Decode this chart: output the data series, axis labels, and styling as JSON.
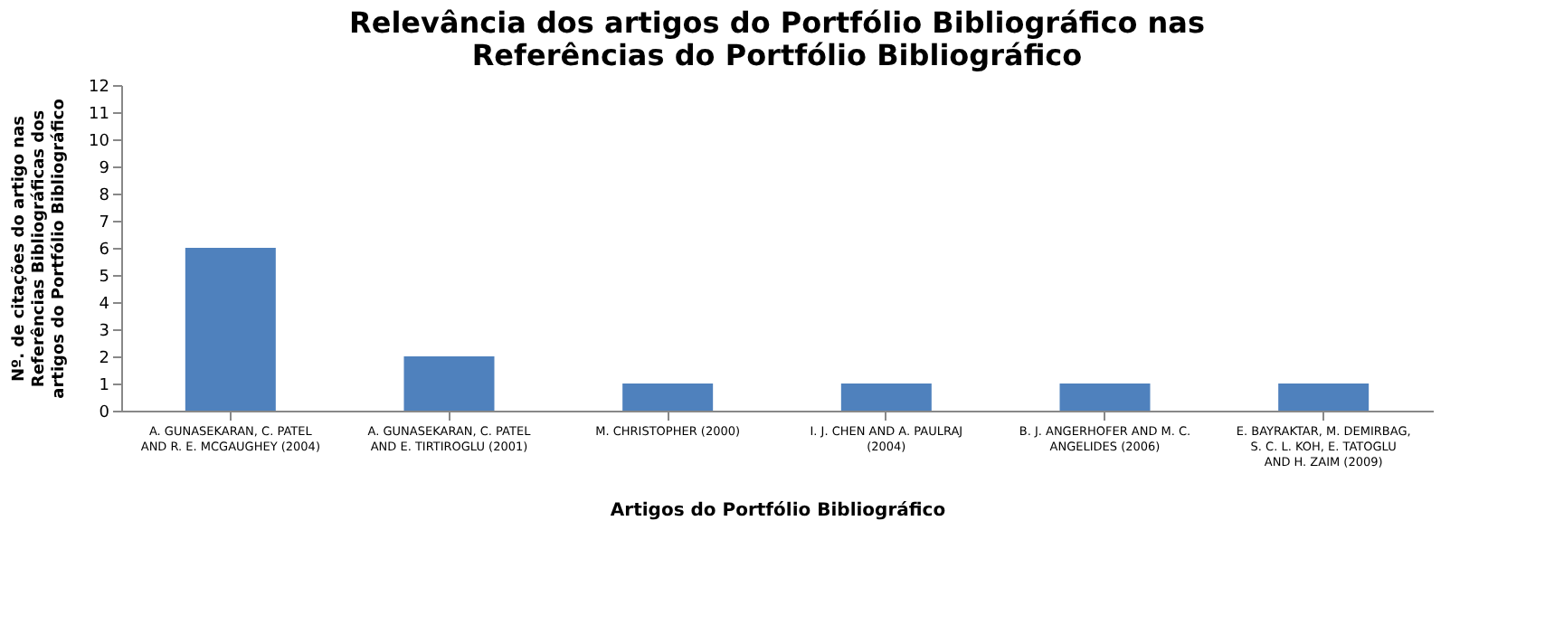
{
  "chart_data": {
    "type": "bar",
    "title": "Relevância dos artigos do Portfólio Bibliográfico nas Referências do Portfólio Bibliográfico",
    "xlabel": "Artigos do Portfólio Bibliográfico",
    "ylabel": "Nº. de citações do artigo nas Referências Bibliográficas dos artigos do Portfólio Bibliográfico",
    "categories": [
      "A. GUNASEKARAN, C. PATEL AND R. E. MCGAUGHEY (2004)",
      "A. GUNASEKARAN, C. PATEL AND E. TIRTIROGLU (2001)",
      "M. CHRISTOPHER (2000)",
      "I. J. CHEN AND A. PAULRAJ (2004)",
      "B. J. ANGERHOFER AND M. C. ANGELIDES (2006)",
      "E. BAYRAKTAR, M. DEMIRBAG, S. C. L. KOH, E. TATOGLU AND H. ZAIM (2009)"
    ],
    "values": [
      6,
      2,
      1,
      1,
      1,
      1
    ],
    "color": "#4f81bd",
    "ylim": [
      0,
      12
    ],
    "yticks": [
      0,
      1,
      2,
      3,
      4,
      5,
      6,
      7,
      8,
      9,
      10,
      11,
      12
    ],
    "grid": false
  }
}
